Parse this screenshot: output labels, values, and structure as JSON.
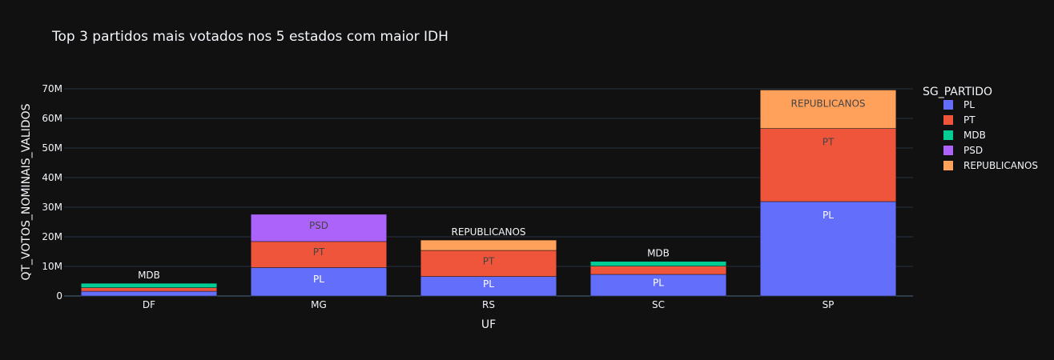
{
  "chart_data": {
    "type": "bar",
    "stacked": true,
    "title": "Top 3 partidos mais votados nos 5 estados com maior IDH",
    "xlabel": "UF",
    "ylabel": "QT_VOTOS_NOMINAIS_VALIDOS",
    "ylim": [
      0,
      70000000
    ],
    "y_ticks": [
      0,
      10000000,
      20000000,
      30000000,
      40000000,
      50000000,
      60000000,
      70000000
    ],
    "y_tick_labels": [
      "0",
      "10M",
      "20M",
      "30M",
      "40M",
      "50M",
      "60M",
      "70M"
    ],
    "categories": [
      "DF",
      "MG",
      "RS",
      "SC",
      "SP"
    ],
    "grid": true,
    "legend": {
      "title": "SG_PARTIDO",
      "placement": "right",
      "entries": [
        "PL",
        "PT",
        "MDB",
        "PSD",
        "REPUBLICANOS"
      ]
    },
    "series": [
      {
        "name": "PL",
        "color": "#636efa",
        "label_color": "#ffffff",
        "values": [
          1600000,
          9600000,
          6600000,
          7300000,
          31900000
        ]
      },
      {
        "name": "PT",
        "color": "#ef553b",
        "label_color": "#444444",
        "values": [
          1200000,
          8800000,
          8800000,
          2800000,
          24700000
        ]
      },
      {
        "name": "MDB",
        "color": "#00cc96",
        "label_color": "#ffffff",
        "values": [
          1500000,
          null,
          null,
          1600000,
          null
        ]
      },
      {
        "name": "PSD",
        "color": "#ab63fa",
        "label_color": "#444444",
        "values": [
          null,
          9200000,
          null,
          null,
          null
        ]
      },
      {
        "name": "REPUBLICANOS",
        "color": "#ffa15a",
        "label_color": "#444444",
        "values": [
          null,
          null,
          3500000,
          null,
          13000000
        ]
      }
    ]
  }
}
